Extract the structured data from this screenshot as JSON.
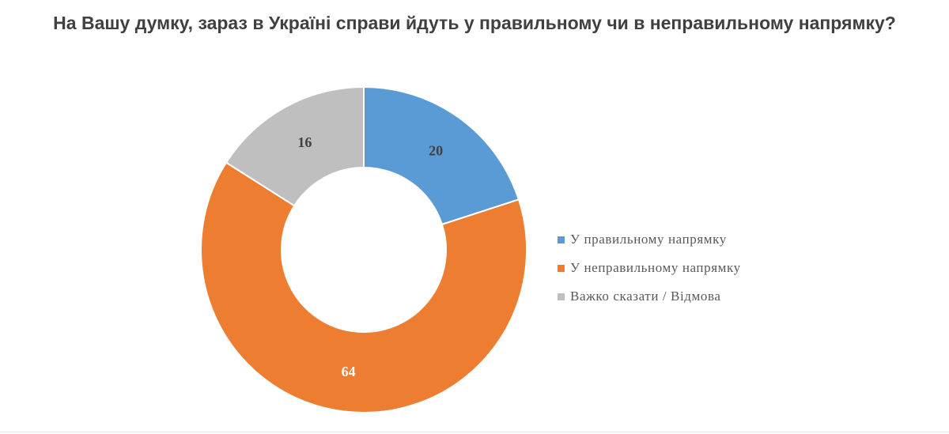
{
  "chart_data": {
    "type": "pie",
    "title": "На Вашу думку, зараз в Україні справи йдуть у правильному чи в неправильному напрямку?",
    "categories": [
      "У правильному напрямку",
      "У неправильному напрямку",
      "Важко сказати / Відмова"
    ],
    "values": [
      20,
      64,
      16
    ],
    "colors": [
      "#5b9bd5",
      "#ed7d31",
      "#bfbfbf"
    ],
    "data_labels": [
      "20",
      "64",
      "16"
    ],
    "donut": true,
    "legend_position": "right"
  }
}
